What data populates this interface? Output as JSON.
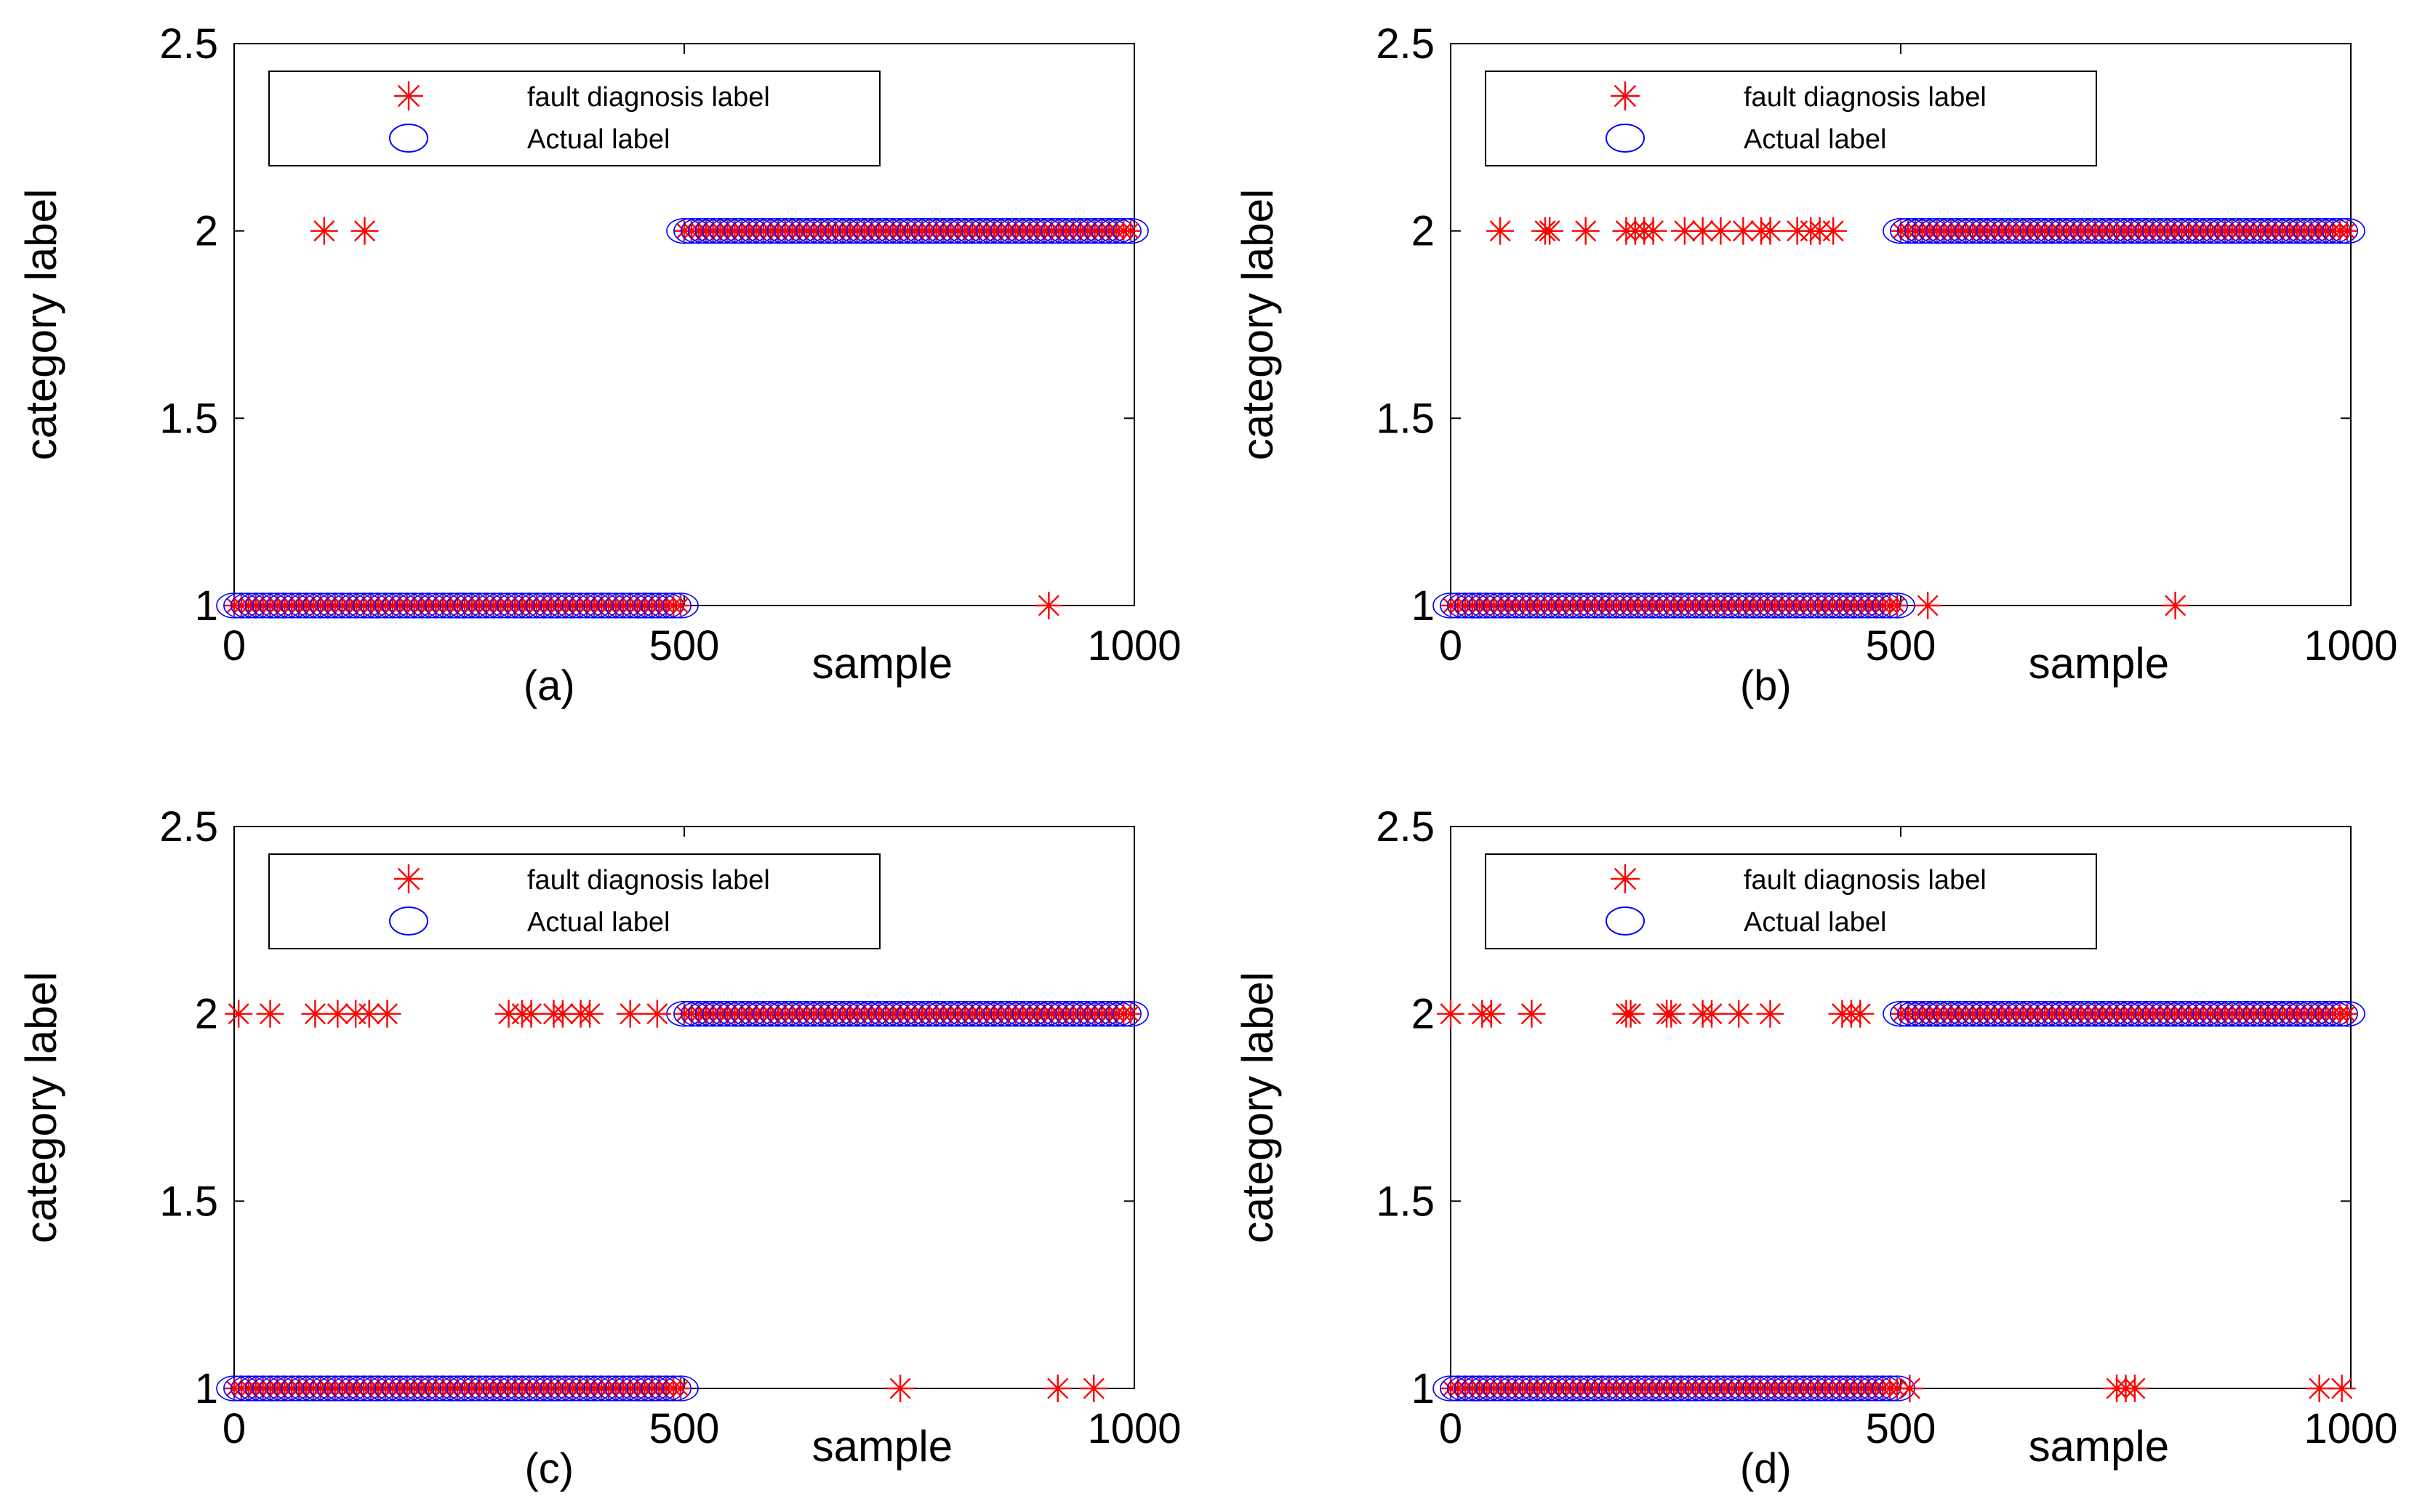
{
  "legend": {
    "predicted_label": "fault diagnosis label",
    "actual_label": "Actual label"
  },
  "colors": {
    "predicted": "#ff0000",
    "actual": "#0000ff",
    "axes": "#000000"
  },
  "chart_data": [
    {
      "type": "scatter",
      "caption": "(a)",
      "xlabel": "sample",
      "ylabel": "category label",
      "xlim": [
        0,
        1000
      ],
      "ylim": [
        1,
        2.5
      ],
      "xticks": [
        "0",
        "500",
        "1000"
      ],
      "yticks": [
        "1",
        "1.5",
        "2",
        "2.5"
      ],
      "legend_position": "top",
      "series": [
        {
          "name": "Actual label",
          "marker": "circle",
          "segments": [
            {
              "from": 0,
              "to": 500,
              "value": 1
            },
            {
              "from": 500,
              "to": 1000,
              "value": 2
            }
          ]
        },
        {
          "name": "fault diagnosis label",
          "marker": "asterisk",
          "misclassified": [
            {
              "x": 100,
              "y": 2
            },
            {
              "x": 145,
              "y": 2
            },
            {
              "x": 905,
              "y": 1
            }
          ]
        }
      ]
    },
    {
      "type": "scatter",
      "caption": "(b)",
      "xlabel": "sample",
      "ylabel": "category label",
      "xlim": [
        0,
        1000
      ],
      "ylim": [
        1,
        2.5
      ],
      "xticks": [
        "0",
        "500",
        "1000"
      ],
      "yticks": [
        "1",
        "1.5",
        "2",
        "2.5"
      ],
      "legend_position": "top",
      "series": [
        {
          "name": "Actual label",
          "marker": "circle",
          "segments": [
            {
              "from": 0,
              "to": 500,
              "value": 1
            },
            {
              "from": 500,
              "to": 1000,
              "value": 2
            }
          ]
        },
        {
          "name": "fault diagnosis label",
          "marker": "asterisk",
          "misclassified": [
            {
              "x": 55,
              "y": 2
            },
            {
              "x": 105,
              "y": 2
            },
            {
              "x": 110,
              "y": 2
            },
            {
              "x": 150,
              "y": 2
            },
            {
              "x": 195,
              "y": 2
            },
            {
              "x": 205,
              "y": 2
            },
            {
              "x": 215,
              "y": 2
            },
            {
              "x": 225,
              "y": 2
            },
            {
              "x": 260,
              "y": 2
            },
            {
              "x": 280,
              "y": 2
            },
            {
              "x": 300,
              "y": 2
            },
            {
              "x": 325,
              "y": 2
            },
            {
              "x": 345,
              "y": 2
            },
            {
              "x": 355,
              "y": 2
            },
            {
              "x": 385,
              "y": 2
            },
            {
              "x": 400,
              "y": 2
            },
            {
              "x": 410,
              "y": 2
            },
            {
              "x": 425,
              "y": 2
            },
            {
              "x": 530,
              "y": 1
            },
            {
              "x": 805,
              "y": 1
            }
          ]
        }
      ]
    },
    {
      "type": "scatter",
      "caption": "(c)",
      "xlabel": "sample",
      "ylabel": "category label",
      "xlim": [
        0,
        1000
      ],
      "ylim": [
        1,
        2.5
      ],
      "xticks": [
        "0",
        "500",
        "1000"
      ],
      "yticks": [
        "1",
        "1.5",
        "2",
        "2.5"
      ],
      "legend_position": "top",
      "series": [
        {
          "name": "Actual label",
          "marker": "circle",
          "segments": [
            {
              "from": 0,
              "to": 500,
              "value": 1
            },
            {
              "from": 500,
              "to": 1000,
              "value": 2
            }
          ]
        },
        {
          "name": "fault diagnosis label",
          "marker": "asterisk",
          "misclassified": [
            {
              "x": 5,
              "y": 2
            },
            {
              "x": 40,
              "y": 2
            },
            {
              "x": 90,
              "y": 2
            },
            {
              "x": 115,
              "y": 2
            },
            {
              "x": 135,
              "y": 2
            },
            {
              "x": 150,
              "y": 2
            },
            {
              "x": 170,
              "y": 2
            },
            {
              "x": 305,
              "y": 2
            },
            {
              "x": 320,
              "y": 2
            },
            {
              "x": 330,
              "y": 2
            },
            {
              "x": 355,
              "y": 2
            },
            {
              "x": 365,
              "y": 2
            },
            {
              "x": 385,
              "y": 2
            },
            {
              "x": 395,
              "y": 2
            },
            {
              "x": 440,
              "y": 2
            },
            {
              "x": 470,
              "y": 2
            },
            {
              "x": 740,
              "y": 1
            },
            {
              "x": 915,
              "y": 1
            },
            {
              "x": 955,
              "y": 1
            }
          ]
        }
      ]
    },
    {
      "type": "scatter",
      "caption": "(d)",
      "xlabel": "sample",
      "ylabel": "category label",
      "xlim": [
        0,
        1000
      ],
      "ylim": [
        1,
        2.5
      ],
      "xticks": [
        "0",
        "500",
        "1000"
      ],
      "yticks": [
        "1",
        "1.5",
        "2",
        "2.5"
      ],
      "legend_position": "top",
      "series": [
        {
          "name": "Actual label",
          "marker": "circle",
          "segments": [
            {
              "from": 0,
              "to": 500,
              "value": 1
            },
            {
              "from": 500,
              "to": 1000,
              "value": 2
            }
          ]
        },
        {
          "name": "fault diagnosis label",
          "marker": "asterisk",
          "misclassified": [
            {
              "x": 0,
              "y": 2
            },
            {
              "x": 35,
              "y": 2
            },
            {
              "x": 45,
              "y": 2
            },
            {
              "x": 90,
              "y": 2
            },
            {
              "x": 195,
              "y": 2
            },
            {
              "x": 200,
              "y": 2
            },
            {
              "x": 240,
              "y": 2
            },
            {
              "x": 245,
              "y": 2
            },
            {
              "x": 280,
              "y": 2
            },
            {
              "x": 290,
              "y": 2
            },
            {
              "x": 320,
              "y": 2
            },
            {
              "x": 355,
              "y": 2
            },
            {
              "x": 435,
              "y": 2
            },
            {
              "x": 445,
              "y": 2
            },
            {
              "x": 455,
              "y": 2
            },
            {
              "x": 510,
              "y": 1
            },
            {
              "x": 740,
              "y": 1
            },
            {
              "x": 750,
              "y": 1
            },
            {
              "x": 760,
              "y": 1
            },
            {
              "x": 965,
              "y": 1
            },
            {
              "x": 990,
              "y": 1
            }
          ]
        }
      ]
    }
  ]
}
